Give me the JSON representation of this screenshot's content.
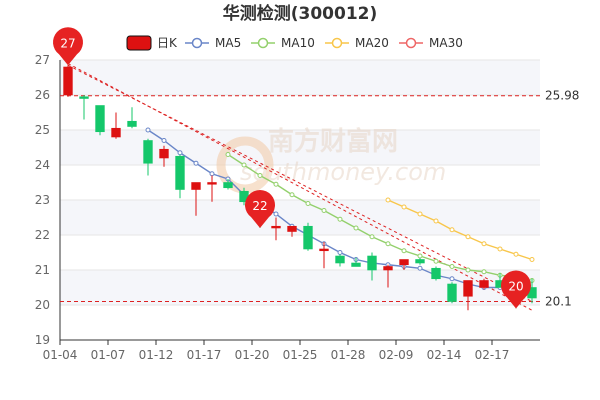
{
  "chart_data": {
    "type": "candlestick",
    "title": "华测检测(300012)",
    "legend": [
      {
        "name": "日K",
        "color": "#dd1111",
        "style": "box"
      },
      {
        "name": "MA5",
        "color": "#6a86c8",
        "style": "circle"
      },
      {
        "name": "MA10",
        "color": "#93d06c",
        "style": "circle"
      },
      {
        "name": "MA20",
        "color": "#f8c64a",
        "style": "circle"
      },
      {
        "name": "MA30",
        "color": "#ee6666",
        "style": "circle"
      }
    ],
    "ylim": [
      19,
      27
    ],
    "yticks": [
      "19",
      "20",
      "21",
      "22",
      "23",
      "24",
      "25",
      "26",
      "27"
    ],
    "xticks": [
      {
        "label": "01-04",
        "index": 0
      },
      {
        "label": "01-07",
        "index": 3
      },
      {
        "label": "01-12",
        "index": 6
      },
      {
        "label": "01-17",
        "index": 9
      },
      {
        "label": "01-20",
        "index": 12
      },
      {
        "label": "01-25",
        "index": 15
      },
      {
        "label": "01-28",
        "index": 18
      },
      {
        "label": "02-09",
        "index": 21
      },
      {
        "label": "02-14",
        "index": 24
      },
      {
        "label": "02-17",
        "index": 27
      }
    ],
    "candles": [
      {
        "o": 26.0,
        "h": 26.85,
        "l": 25.95,
        "c": 26.8
      },
      {
        "o": 25.95,
        "h": 26.0,
        "l": 25.3,
        "c": 25.9
      },
      {
        "o": 25.7,
        "h": 25.7,
        "l": 24.85,
        "c": 24.95
      },
      {
        "o": 24.8,
        "h": 25.5,
        "l": 24.75,
        "c": 25.05
      },
      {
        "o": 25.25,
        "h": 25.65,
        "l": 25.05,
        "c": 25.1
      },
      {
        "o": 24.7,
        "h": 24.75,
        "l": 23.7,
        "c": 24.05
      },
      {
        "o": 24.2,
        "h": 24.55,
        "l": 23.95,
        "c": 24.45
      },
      {
        "o": 24.25,
        "h": 24.3,
        "l": 23.05,
        "c": 23.3
      },
      {
        "o": 23.3,
        "h": 23.5,
        "l": 22.55,
        "c": 23.5
      },
      {
        "o": 23.45,
        "h": 23.7,
        "l": 22.95,
        "c": 23.5
      },
      {
        "o": 23.5,
        "h": 23.6,
        "l": 23.3,
        "c": 23.35
      },
      {
        "o": 23.25,
        "h": 23.35,
        "l": 22.85,
        "c": 22.95
      },
      {
        "o": 22.9,
        "h": 22.95,
        "l": 22.2,
        "c": 22.4
      },
      {
        "o": 22.2,
        "h": 22.5,
        "l": 21.85,
        "c": 22.25
      },
      {
        "o": 22.1,
        "h": 22.25,
        "l": 21.95,
        "c": 22.25
      },
      {
        "o": 22.25,
        "h": 22.35,
        "l": 21.55,
        "c": 21.6
      },
      {
        "o": 21.55,
        "h": 21.8,
        "l": 21.05,
        "c": 21.6
      },
      {
        "o": 21.4,
        "h": 21.45,
        "l": 21.1,
        "c": 21.2
      },
      {
        "o": 21.2,
        "h": 21.35,
        "l": 21.1,
        "c": 21.1
      },
      {
        "o": 21.4,
        "h": 21.5,
        "l": 20.7,
        "c": 21.0
      },
      {
        "o": 21.0,
        "h": 21.15,
        "l": 20.5,
        "c": 21.1
      },
      {
        "o": 21.15,
        "h": 21.3,
        "l": 21.0,
        "c": 21.3
      },
      {
        "o": 21.3,
        "h": 21.35,
        "l": 21.15,
        "c": 21.2
      },
      {
        "o": 21.05,
        "h": 21.1,
        "l": 20.7,
        "c": 20.75
      },
      {
        "o": 20.6,
        "h": 20.65,
        "l": 20.05,
        "c": 20.1
      },
      {
        "o": 20.25,
        "h": 20.7,
        "l": 19.85,
        "c": 20.7
      },
      {
        "o": 20.5,
        "h": 20.75,
        "l": 20.45,
        "c": 20.7
      },
      {
        "o": 20.7,
        "h": 20.9,
        "l": 20.55,
        "c": 20.5
      },
      {
        "o": 20.8,
        "h": 20.85,
        "l": 19.9,
        "c": 20.6
      },
      {
        "o": 20.5,
        "h": 20.75,
        "l": 20.05,
        "c": 20.2
      }
    ],
    "ma": [
      {
        "name": "MA5",
        "start": 5,
        "values": [
          25.0,
          24.7,
          24.35,
          24.05,
          23.75,
          23.6,
          23.15,
          22.9,
          22.6,
          22.25,
          22.0,
          21.75,
          21.5,
          21.3,
          21.2,
          21.15,
          21.1,
          21.05,
          20.85,
          20.75,
          20.6,
          20.5,
          20.5,
          20.45,
          20.4
        ]
      },
      {
        "name": "MA10",
        "start": 10,
        "values": [
          24.3,
          24.0,
          23.7,
          23.45,
          23.15,
          22.9,
          22.7,
          22.45,
          22.2,
          21.95,
          21.75,
          21.55,
          21.4,
          21.25,
          21.1,
          21.0,
          20.95,
          20.85,
          20.8,
          20.7
        ]
      },
      {
        "name": "MA20",
        "start": 20,
        "values": [
          23.0,
          22.8,
          22.6,
          22.4,
          22.15,
          21.95,
          21.75,
          21.6,
          21.45,
          21.3
        ]
      }
    ],
    "ref_lines": [
      {
        "label": "25.98",
        "value": 25.98
      },
      {
        "label": "20.1",
        "value": 20.1
      }
    ],
    "trend_lines": [
      {
        "from": {
          "index": 0,
          "value": 26.9
        },
        "to": {
          "index": 29,
          "value": 19.85
        }
      },
      {
        "from": {
          "index": 0,
          "value": 26.85
        },
        "to": {
          "index": 29,
          "value": 20.1
        }
      }
    ],
    "pins": [
      {
        "label": "27",
        "index": 0,
        "value": 26.85
      },
      {
        "label": "22",
        "index": 12,
        "value": 22.2
      },
      {
        "label": "20",
        "index": 28,
        "value": 19.9
      }
    ],
    "colors": {
      "up": "#dd1111",
      "down": "#14c76a",
      "ref": "#dd2222",
      "grid": "#e6e6e6"
    }
  },
  "watermark": {
    "cn": "南方财富网",
    "en": "southmoney.com"
  }
}
